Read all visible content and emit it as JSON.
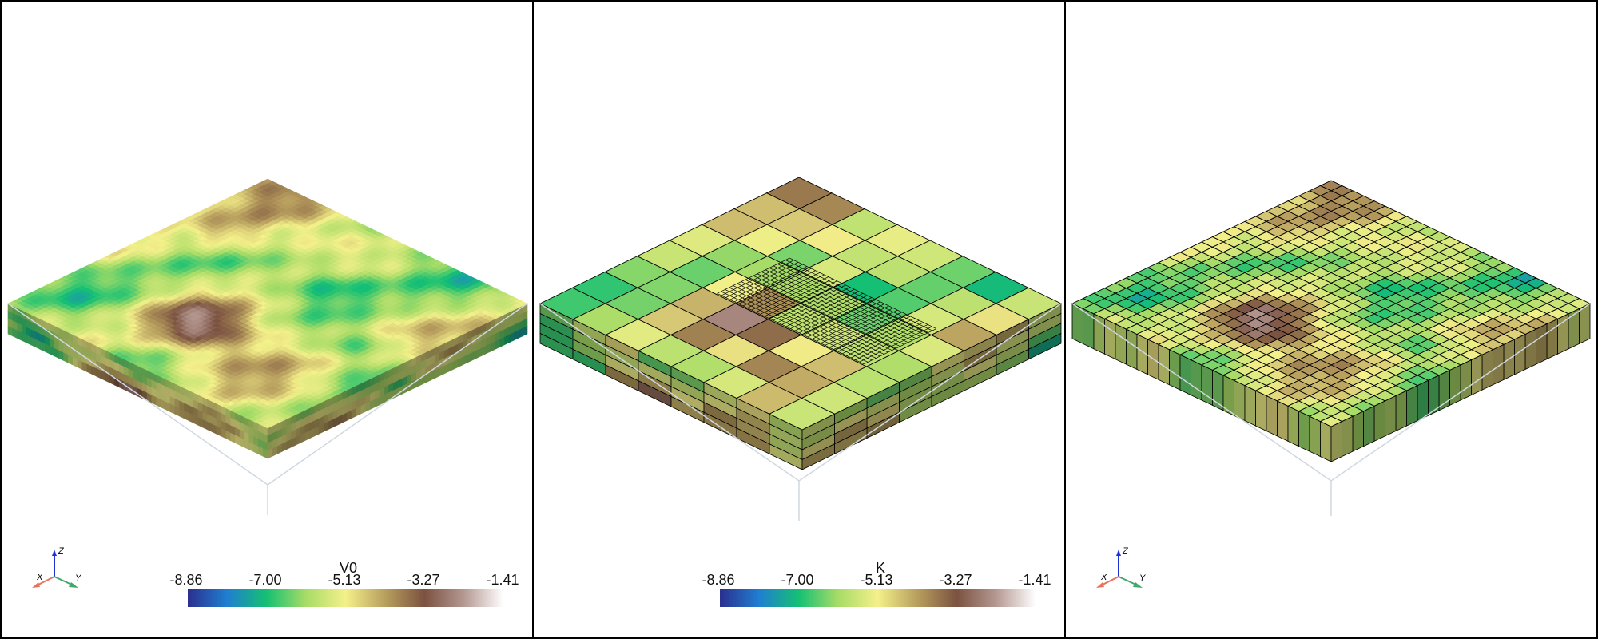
{
  "panels": [
    {
      "id": "left",
      "scalar_name": "V0",
      "colorbar": {
        "ticks": [
          "-8.86",
          "-7.00",
          "-5.13",
          "-3.27",
          "-1.41"
        ],
        "visible": true
      },
      "axes_widget": {
        "visible": true,
        "x": "X",
        "y": "Y",
        "z": "Z"
      }
    },
    {
      "id": "middle",
      "scalar_name": "K",
      "colorbar": {
        "ticks": [
          "-8.86",
          "-7.00",
          "-5.13",
          "-3.27",
          "-1.41"
        ],
        "visible": true
      },
      "axes_widget": {
        "visible": false
      }
    },
    {
      "id": "right",
      "scalar_name": "",
      "colorbar": {
        "visible": false
      },
      "axes_widget": {
        "visible": true,
        "x": "X",
        "y": "Y",
        "z": "Z"
      }
    }
  ],
  "colormap": {
    "name": "gist_earth-like",
    "stops": [
      "#2b2f8f",
      "#1f7fd1",
      "#15c073",
      "#a8dc67",
      "#f4f08a",
      "#b89f5e",
      "#7b5240",
      "#b59892",
      "#ffffff"
    ]
  },
  "colors": {
    "border": "#000000",
    "x_axis": "#e8735a",
    "y_axis": "#3fa96b",
    "z_axis": "#1d2fd6",
    "mesh_line": "#000000"
  }
}
